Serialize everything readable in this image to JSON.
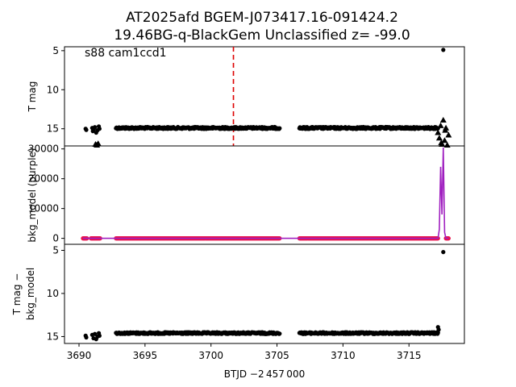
{
  "title_line1": "AT2025afd  BGEM-J073417.16-091424.2",
  "title_line2": "19.46BG-q-BlackGem Unclassified z= -99.0",
  "chart_data": [
    {
      "type": "scatter",
      "panel": "top",
      "ylabel": "T mag",
      "annotation": "s88 cam1ccd1",
      "y_inverted": true,
      "ylim": [
        17.2,
        4.5
      ],
      "xlim": [
        3688.9,
        3719.2
      ],
      "yticks": [
        5,
        10,
        15
      ],
      "yticklabels": [
        "5",
        "10",
        "15"
      ],
      "vline": {
        "x": 3701.7,
        "color": "#dd0000",
        "style": "dashed"
      },
      "series": [
        {
          "marker": "dot",
          "color": "#000000",
          "points": [
            [
              3690.5,
              15.0
            ],
            [
              3690.55,
              15.15
            ],
            [
              3691.0,
              14.9
            ],
            [
              3691.05,
              15.3
            ],
            [
              3691.1,
              15.1
            ],
            [
              3691.2,
              14.8
            ],
            [
              3691.3,
              15.5
            ],
            [
              3691.4,
              15.2
            ],
            [
              3691.5,
              14.7
            ],
            [
              3691.55,
              15.0
            ],
            [
              3717.6,
              4.9
            ]
          ]
        },
        {
          "marker": "triangle",
          "color": "#000000",
          "points": [
            [
              3691.25,
              17.0
            ],
            [
              3691.35,
              17.1
            ],
            [
              3691.45,
              16.9
            ],
            [
              3717.2,
              15.5
            ],
            [
              3717.3,
              16.2
            ],
            [
              3717.4,
              14.6
            ],
            [
              3717.5,
              17.0
            ],
            [
              3717.6,
              13.9
            ],
            [
              3717.7,
              16.5
            ],
            [
              3717.8,
              14.9
            ],
            [
              3717.9,
              17.1
            ],
            [
              3718.0,
              15.8
            ],
            [
              3717.45,
              16.8
            ],
            [
              3717.75,
              15.2
            ]
          ]
        }
      ],
      "bands": [
        {
          "x_start": 3692.8,
          "x_end": 3705.2,
          "y": 14.9,
          "spread": 0.25
        },
        {
          "x_start": 3706.7,
          "x_end": 3717.2,
          "y": 14.9,
          "spread": 0.25
        }
      ]
    },
    {
      "type": "line",
      "panel": "middle",
      "ylabel": "bkg_model (purple)",
      "ylim": [
        -2000,
        31000
      ],
      "xlim": [
        3688.9,
        3719.2
      ],
      "yticks": [
        0,
        10000,
        20000,
        30000
      ],
      "yticklabels": [
        "0",
        "10000",
        "20000",
        "30000"
      ],
      "line_color": "#a020c0",
      "marker_color": "#e8104a",
      "model_line": [
        [
          3690.3,
          0
        ],
        [
          3691.6,
          0
        ],
        [
          3692.8,
          0
        ],
        [
          3705.2,
          0
        ],
        [
          3706.7,
          0
        ],
        [
          3717.2,
          0
        ],
        [
          3717.3,
          3000
        ],
        [
          3717.4,
          24000
        ],
        [
          3717.5,
          8000
        ],
        [
          3717.6,
          30500
        ],
        [
          3717.7,
          2000
        ],
        [
          3717.8,
          0
        ],
        [
          3718.0,
          0
        ]
      ],
      "marker_segments": [
        {
          "x_start": 3690.3,
          "x_end": 3690.6
        },
        {
          "x_start": 3690.9,
          "x_end": 3691.6
        },
        {
          "x_start": 3692.8,
          "x_end": 3705.2
        },
        {
          "x_start": 3706.7,
          "x_end": 3717.2
        },
        {
          "x_start": 3717.8,
          "x_end": 3718.0
        }
      ]
    },
    {
      "type": "scatter",
      "panel": "bottom",
      "ylabel_line1": "T mag −",
      "ylabel_line2": "bkg_model",
      "y_inverted": true,
      "ylim": [
        15.8,
        4.3
      ],
      "xlim": [
        3688.9,
        3719.2
      ],
      "yticks": [
        5,
        10,
        15
      ],
      "yticklabels": [
        "5",
        "10",
        "15"
      ],
      "xticks": [
        3690,
        3695,
        3700,
        3705,
        3710,
        3715
      ],
      "xticklabels": [
        "3690",
        "3695",
        "3700",
        "3705",
        "3710",
        "3715"
      ],
      "xlabel": "BTJD −2 457 000",
      "series": [
        {
          "marker": "dot",
          "color": "#000000",
          "points": [
            [
              3690.5,
              14.9
            ],
            [
              3690.55,
              15.1
            ],
            [
              3691.0,
              14.8
            ],
            [
              3691.1,
              15.2
            ],
            [
              3691.2,
              14.7
            ],
            [
              3691.3,
              15.3
            ],
            [
              3691.4,
              15.0
            ],
            [
              3691.5,
              14.6
            ],
            [
              3691.55,
              14.9
            ],
            [
              3717.2,
              13.9
            ],
            [
              3717.25,
              14.2
            ],
            [
              3717.6,
              5.2
            ]
          ]
        }
      ],
      "bands": [
        {
          "x_start": 3692.8,
          "x_end": 3705.2,
          "y": 14.6,
          "spread": 0.2
        },
        {
          "x_start": 3706.7,
          "x_end": 3717.2,
          "y": 14.6,
          "spread": 0.2
        }
      ]
    }
  ]
}
